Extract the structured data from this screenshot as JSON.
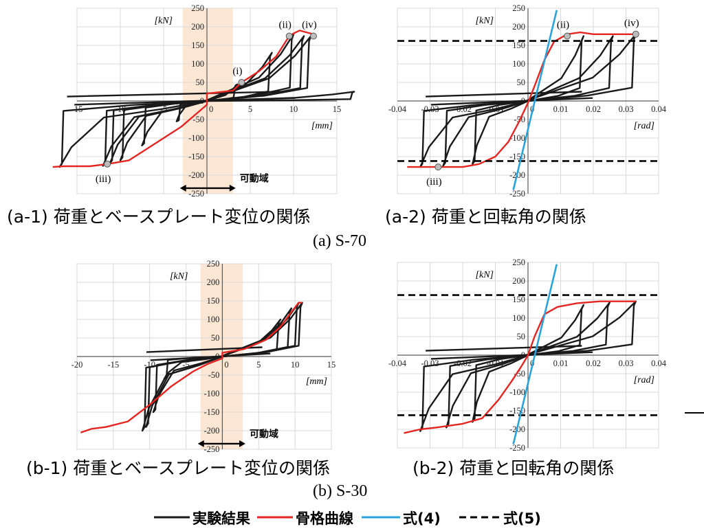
{
  "captions": {
    "a1": "(a-1) 荷重とベースプレート変位の関係",
    "a2": "(a-2) 荷重と回転角の関係",
    "a": "(a) S-70",
    "b1": "(b-1) 荷重とベースプレート変位の関係",
    "b2": "(b-2) 荷重と回転角の関係",
    "b": "(b) S-30"
  },
  "legend": {
    "experiment": "実験結果",
    "skeleton": "骨格曲線",
    "eq4": "式(4)",
    "eq5": "式(5)"
  },
  "colors": {
    "experiment": "#1a1a1a",
    "skeleton": "#e52521",
    "eq4": "#29a3dc",
    "eq5": "#000000",
    "movable_band": "#fbe3cc",
    "grid": "#d9d9d9"
  },
  "chart_data": [
    {
      "id": "a1",
      "type": "line",
      "unit_y": "[kN]",
      "unit_x": "[mm]",
      "xlim": [
        -15,
        15
      ],
      "ylim": [
        -250,
        250
      ],
      "x_ticks": [
        -15,
        -10,
        -5,
        0,
        5,
        10,
        15
      ],
      "y_ticks": [
        250,
        200,
        150,
        100,
        50,
        0,
        -50,
        -100,
        -150,
        -200,
        -250
      ],
      "grid": true,
      "band": {
        "x": [
          -2.8,
          3.0
        ],
        "label": "可動域"
      },
      "skeleton": [
        [
          -17.8,
          -178
        ],
        [
          -16.5,
          -176
        ],
        [
          -13.5,
          -176
        ],
        [
          -11.5,
          -170
        ],
        [
          -9,
          -160
        ],
        [
          -7,
          -130
        ],
        [
          -5,
          -100
        ],
        [
          -3,
          -70
        ],
        [
          -1.5,
          -40
        ],
        [
          0,
          -10
        ],
        [
          0,
          20
        ],
        [
          3,
          28
        ],
        [
          4,
          50
        ],
        [
          6,
          80
        ],
        [
          8,
          120
        ],
        [
          9.5,
          175
        ],
        [
          10,
          182
        ],
        [
          10.7,
          190
        ],
        [
          11.5,
          185
        ],
        [
          12.3,
          180
        ]
      ],
      "loops": [
        {
          "amp": 3.5,
          "top": 45,
          "bottom": -55
        },
        {
          "amp": 7.5,
          "top": 130,
          "bottom": -120
        },
        {
          "amp": 10.0,
          "top": 180,
          "bottom": -160
        },
        {
          "amp": 11.2,
          "top": 175,
          "bottom": -168
        },
        {
          "amp": 12.0,
          "top": 175,
          "bottom": -175
        },
        {
          "amp": 17.0,
          "top": 25,
          "bottom": -178
        }
      ],
      "points": [
        {
          "label": "(i)",
          "x": 4,
          "y": 50
        },
        {
          "label": "(ii)",
          "x": 9.5,
          "y": 175
        },
        {
          "label": "(iii)",
          "x": -11.5,
          "y": -170
        },
        {
          "label": "(iv)",
          "x": 12.3,
          "y": 175
        }
      ]
    },
    {
      "id": "a2",
      "type": "line",
      "unit_y": "[kN]",
      "unit_x": "[rad]",
      "xlim": [
        -0.04,
        0.04
      ],
      "ylim": [
        -250,
        250
      ],
      "x_ticks": [
        -0.04,
        -0.03,
        -0.02,
        -0.01,
        0,
        0.01,
        0.02,
        0.03,
        0.04
      ],
      "y_ticks": [
        250,
        200,
        150,
        100,
        50,
        0,
        -50,
        -100,
        -150,
        -200,
        -250
      ],
      "grid": true,
      "eq5_level": 162,
      "eq4_line": [
        [
          -0.0045,
          -240
        ],
        [
          0.0088,
          245
        ]
      ],
      "skeleton": [
        [
          -0.037,
          -178
        ],
        [
          -0.03,
          -178
        ],
        [
          -0.025,
          -178
        ],
        [
          -0.02,
          -178
        ],
        [
          -0.015,
          -170
        ],
        [
          -0.01,
          -150
        ],
        [
          -0.006,
          -110
        ],
        [
          -0.003,
          -60
        ],
        [
          0,
          -5
        ],
        [
          0.002,
          40
        ],
        [
          0.005,
          110
        ],
        [
          0.008,
          160
        ],
        [
          0.012,
          180
        ],
        [
          0.016,
          185
        ],
        [
          0.02,
          180
        ],
        [
          0.026,
          180
        ],
        [
          0.033,
          180
        ]
      ],
      "loops": [
        {
          "amp": 0.017,
          "top": 175,
          "bottom": -170
        },
        {
          "amp": 0.026,
          "top": 175,
          "bottom": -175
        },
        {
          "amp": 0.033,
          "top": 180,
          "bottom": -178
        }
      ],
      "points": [
        {
          "label": "(ii)",
          "x": 0.012,
          "y": 175
        },
        {
          "label": "(iii)",
          "x": -0.0275,
          "y": -178
        },
        {
          "label": "(iv)",
          "x": 0.033,
          "y": 180
        }
      ]
    },
    {
      "id": "b1",
      "type": "line",
      "unit_y": "[kN]",
      "unit_x": "[mm]",
      "xlim": [
        -20,
        15
      ],
      "ylim": [
        -250,
        250
      ],
      "x_ticks": [
        -20,
        -15,
        -10,
        -5,
        0,
        5,
        10,
        15
      ],
      "y_ticks": [
        250,
        200,
        150,
        100,
        50,
        0,
        -50,
        -100,
        -150,
        -200,
        -250
      ],
      "grid": true,
      "band": {
        "x": [
          -3.0,
          2.8
        ],
        "label": "可動域"
      },
      "skeleton": [
        [
          -19.5,
          -205
        ],
        [
          -18,
          -195
        ],
        [
          -16,
          -190
        ],
        [
          -13,
          -175
        ],
        [
          -10,
          -130
        ],
        [
          -7,
          -80
        ],
        [
          -4,
          -40
        ],
        [
          -2,
          -20
        ],
        [
          0,
          -5
        ],
        [
          0,
          10
        ],
        [
          3,
          20
        ],
        [
          6,
          45
        ],
        [
          8,
          80
        ],
        [
          9.5,
          120
        ],
        [
          10.5,
          145
        ],
        [
          11,
          145
        ]
      ],
      "loops": [
        {
          "amp": 8.0,
          "top": 100,
          "bottom": -60
        },
        {
          "amp": 9.5,
          "top": 130,
          "bottom": -150
        },
        {
          "amp": 10.5,
          "top": 145,
          "bottom": -190
        },
        {
          "amp": 11.0,
          "top": 145,
          "bottom": -200
        }
      ],
      "points": []
    },
    {
      "id": "b2",
      "type": "line",
      "unit_y": "[kN]",
      "unit_x": "[rad]",
      "xlim": [
        -0.04,
        0.04
      ],
      "ylim": [
        -250,
        250
      ],
      "x_ticks": [
        -0.04,
        -0.03,
        -0.02,
        -0.01,
        0,
        0.01,
        0.02,
        0.03,
        0.04
      ],
      "y_ticks": [
        250,
        200,
        150,
        100,
        50,
        0,
        -50,
        -100,
        -150,
        -200,
        -250
      ],
      "grid": true,
      "eq5_level": 162,
      "eq4_line": [
        [
          -0.0045,
          -240
        ],
        [
          0.0088,
          245
        ]
      ],
      "skeleton": [
        [
          -0.038,
          -210
        ],
        [
          -0.033,
          -200
        ],
        [
          -0.028,
          -195
        ],
        [
          -0.02,
          -185
        ],
        [
          -0.014,
          -170
        ],
        [
          -0.009,
          -120
        ],
        [
          -0.005,
          -70
        ],
        [
          -0.002,
          -30
        ],
        [
          0,
          0
        ],
        [
          0.002,
          50
        ],
        [
          0.005,
          110
        ],
        [
          0.009,
          130
        ],
        [
          0.015,
          140
        ],
        [
          0.022,
          145
        ],
        [
          0.028,
          145
        ],
        [
          0.033,
          145
        ]
      ],
      "loops": [
        {
          "amp": 0.017,
          "top": 135,
          "bottom": -180
        },
        {
          "amp": 0.025,
          "top": 142,
          "bottom": -195
        },
        {
          "amp": 0.033,
          "top": 145,
          "bottom": -205
        }
      ],
      "points": []
    }
  ]
}
